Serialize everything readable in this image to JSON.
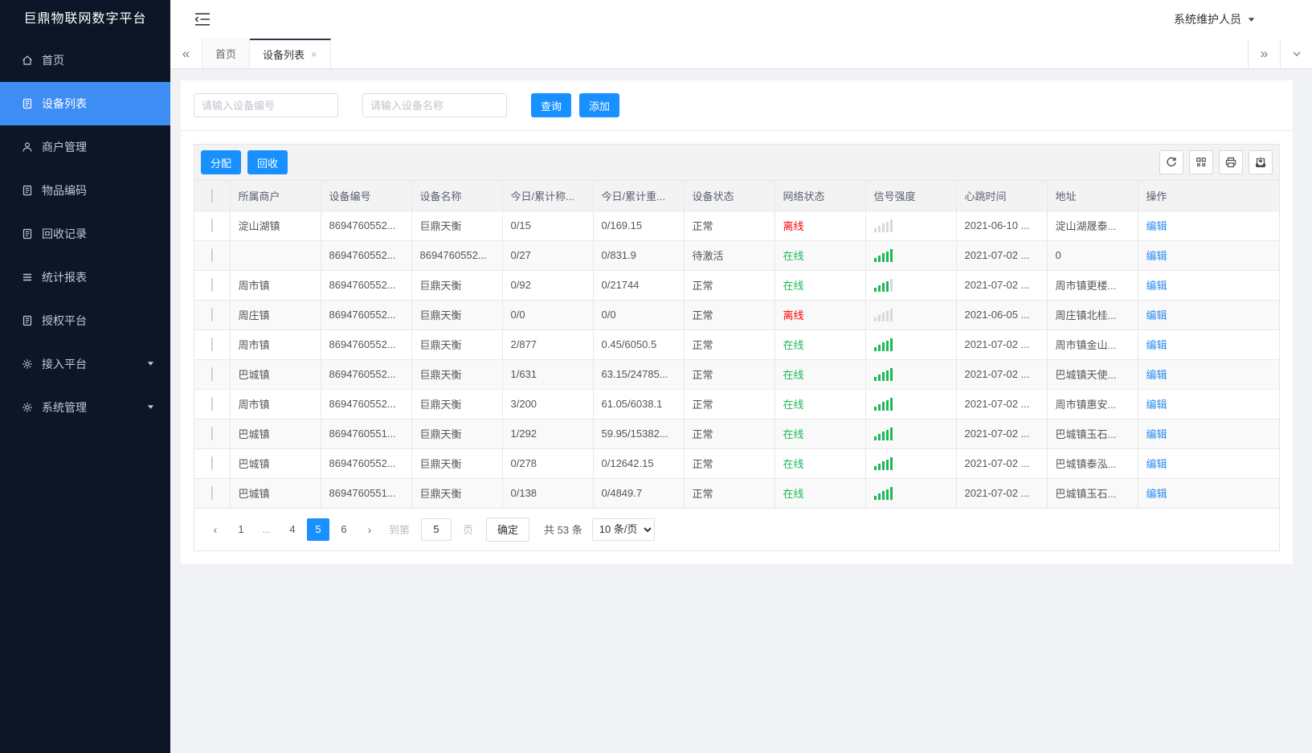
{
  "app": {
    "brand": "巨鼎物联网数字平台",
    "user_name": "系统维护人员"
  },
  "sidebar": {
    "items": [
      {
        "label": "首页",
        "icon": "home-icon",
        "active": false,
        "expandable": false
      },
      {
        "label": "设备列表",
        "icon": "clipboard-icon",
        "active": true,
        "expandable": false
      },
      {
        "label": "商户管理",
        "icon": "user-icon",
        "active": false,
        "expandable": false
      },
      {
        "label": "物品编码",
        "icon": "clipboard-icon",
        "active": false,
        "expandable": false
      },
      {
        "label": "回收记录",
        "icon": "clipboard-icon",
        "active": false,
        "expandable": false
      },
      {
        "label": "统计报表",
        "icon": "lines-icon",
        "active": false,
        "expandable": false
      },
      {
        "label": "授权平台",
        "icon": "clipboard-icon",
        "active": false,
        "expandable": false
      },
      {
        "label": "接入平台",
        "icon": "gear-icon",
        "active": false,
        "expandable": true
      },
      {
        "label": "系统管理",
        "icon": "gear-icon",
        "active": false,
        "expandable": true
      }
    ]
  },
  "tabs": {
    "items": [
      {
        "label": "首页",
        "active": false,
        "closable": false
      },
      {
        "label": "设备列表",
        "active": true,
        "closable": true
      }
    ]
  },
  "filters": {
    "code_placeholder": "请输入设备编号",
    "name_placeholder": "请输入设备名称",
    "search_label": "查询",
    "add_label": "添加"
  },
  "grid_toolbar": {
    "assign_label": "分配",
    "recycle_label": "回收",
    "icons": [
      "refresh-icon",
      "columns-icon",
      "printer-icon",
      "export-icon"
    ]
  },
  "table": {
    "columns": [
      "所属商户",
      "设备编号",
      "设备名称",
      "今日/累计称...",
      "今日/累计重...",
      "设备状态",
      "网络状态",
      "信号强度",
      "心跳时间",
      "地址",
      "操作"
    ],
    "rows": [
      {
        "merchant": "淀山湖镇",
        "code": "8694760552...",
        "name": "巨鼎天衡",
        "count": "0/15",
        "weight": "0/169.15",
        "status": "正常",
        "network": "离线",
        "network_state": "offline",
        "signal_bars": 0,
        "heartbeat": "2021-06-10 ...",
        "address": "淀山湖晟泰...",
        "action": "编辑"
      },
      {
        "merchant": "",
        "code": "8694760552...",
        "name": "8694760552...",
        "count": "0/27",
        "weight": "0/831.9",
        "status": "待激活",
        "network": "在线",
        "network_state": "online",
        "signal_bars": 5,
        "heartbeat": "2021-07-02 ...",
        "address": "0",
        "action": "编辑"
      },
      {
        "merchant": "周市镇",
        "code": "8694760552...",
        "name": "巨鼎天衡",
        "count": "0/92",
        "weight": "0/21744",
        "status": "正常",
        "network": "在线",
        "network_state": "online",
        "signal_bars": 4,
        "heartbeat": "2021-07-02 ...",
        "address": "周市镇更楼...",
        "action": "编辑"
      },
      {
        "merchant": "周庄镇",
        "code": "8694760552...",
        "name": "巨鼎天衡",
        "count": "0/0",
        "weight": "0/0",
        "status": "正常",
        "network": "离线",
        "network_state": "offline",
        "signal_bars": 0,
        "heartbeat": "2021-06-05 ...",
        "address": "周庄镇北桂...",
        "action": "编辑"
      },
      {
        "merchant": "周市镇",
        "code": "8694760552...",
        "name": "巨鼎天衡",
        "count": "2/877",
        "weight": "0.45/6050.5",
        "status": "正常",
        "network": "在线",
        "network_state": "online",
        "signal_bars": 5,
        "heartbeat": "2021-07-02 ...",
        "address": "周市镇金山...",
        "action": "编辑"
      },
      {
        "merchant": "巴城镇",
        "code": "8694760552...",
        "name": "巨鼎天衡",
        "count": "1/631",
        "weight": "63.15/24785...",
        "status": "正常",
        "network": "在线",
        "network_state": "online",
        "signal_bars": 5,
        "heartbeat": "2021-07-02 ...",
        "address": "巴城镇天使...",
        "action": "编辑"
      },
      {
        "merchant": "周市镇",
        "code": "8694760552...",
        "name": "巨鼎天衡",
        "count": "3/200",
        "weight": "61.05/6038.1",
        "status": "正常",
        "network": "在线",
        "network_state": "online",
        "signal_bars": 5,
        "heartbeat": "2021-07-02 ...",
        "address": "周市镇惠安...",
        "action": "编辑"
      },
      {
        "merchant": "巴城镇",
        "code": "8694760551...",
        "name": "巨鼎天衡",
        "count": "1/292",
        "weight": "59.95/15382...",
        "status": "正常",
        "network": "在线",
        "network_state": "online",
        "signal_bars": 5,
        "heartbeat": "2021-07-02 ...",
        "address": "巴城镇玉石...",
        "action": "编辑"
      },
      {
        "merchant": "巴城镇",
        "code": "8694760552...",
        "name": "巨鼎天衡",
        "count": "0/278",
        "weight": "0/12642.15",
        "status": "正常",
        "network": "在线",
        "network_state": "online",
        "signal_bars": 5,
        "heartbeat": "2021-07-02 ...",
        "address": "巴城镇泰泓...",
        "action": "编辑"
      },
      {
        "merchant": "巴城镇",
        "code": "8694760551...",
        "name": "巨鼎天衡",
        "count": "0/138",
        "weight": "0/4849.7",
        "status": "正常",
        "network": "在线",
        "network_state": "online",
        "signal_bars": 5,
        "heartbeat": "2021-07-02 ...",
        "address": "巴城镇玉石...",
        "action": "编辑"
      }
    ]
  },
  "pagination": {
    "pages": [
      "1",
      "...",
      "4",
      "5",
      "6"
    ],
    "active_page": "5",
    "goto_label": "到第",
    "goto_value": "5",
    "page_unit": "页",
    "confirm_label": "确定",
    "total_text": "共 53 条",
    "page_size_value": "10 条/页"
  },
  "colors": {
    "primary_blue": "#1890ff",
    "sidebar_active_blue": "#3e8df5",
    "online_green": "#1cb956",
    "offline_red": "#ff0000",
    "link_blue": "#2d8cf0"
  }
}
